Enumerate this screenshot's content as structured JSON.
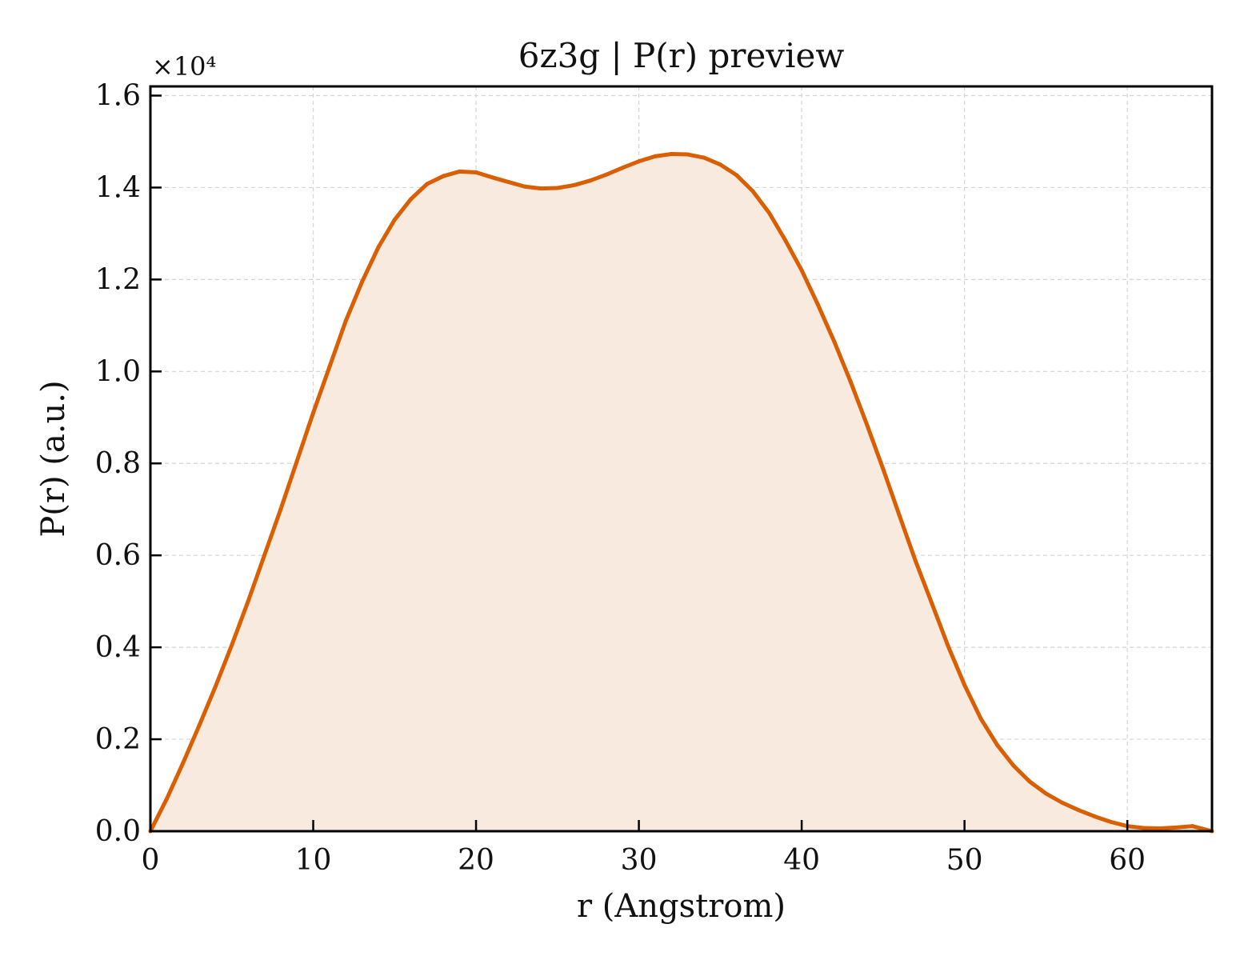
{
  "chart_data": {
    "type": "area",
    "title": "6z3g | P(r) preview",
    "xlabel": "r (Angstrom)",
    "ylabel": "P(r) (a.u.)",
    "y_multiplier_label": "×10⁴",
    "y_scale": 10000,
    "xlim": [
      0,
      65.2
    ],
    "ylim": [
      0,
      16200
    ],
    "x_ticks": [
      0,
      10,
      20,
      30,
      40,
      50,
      60
    ],
    "x_tick_labels": [
      "0",
      "10",
      "20",
      "30",
      "40",
      "50",
      "60"
    ],
    "y_ticks": [
      0,
      2000,
      4000,
      6000,
      8000,
      10000,
      12000,
      14000,
      16000
    ],
    "y_tick_labels": [
      "0.0",
      "0.2",
      "0.4",
      "0.6",
      "0.8",
      "1.0",
      "1.2",
      "1.4",
      "1.6"
    ],
    "grid": true,
    "legend": "none",
    "line_color": "#d95f02",
    "fill_color": "#f8eade",
    "series": [
      {
        "x": [
          0,
          1,
          2,
          3,
          4,
          5,
          6,
          7,
          8,
          9,
          10,
          11,
          12,
          13,
          14,
          15,
          16,
          17,
          18,
          19,
          20,
          21,
          22,
          23,
          24,
          25,
          26,
          27,
          28,
          29,
          30,
          31,
          32,
          33,
          34,
          35,
          36,
          37,
          38,
          39,
          40,
          41,
          42,
          43,
          44,
          45,
          46,
          47,
          48,
          49,
          50,
          51,
          52,
          53,
          54,
          55,
          56,
          57,
          58,
          59,
          60,
          61,
          62,
          63,
          64,
          65.2
        ],
        "values": [
          0,
          700,
          1480,
          2300,
          3150,
          4050,
          5000,
          6000,
          7000,
          8050,
          9100,
          10100,
          11100,
          11950,
          12700,
          13300,
          13750,
          14080,
          14250,
          14350,
          14330,
          14220,
          14120,
          14020,
          13980,
          13990,
          14050,
          14150,
          14280,
          14430,
          14570,
          14680,
          14730,
          14720,
          14650,
          14500,
          14270,
          13920,
          13450,
          12850,
          12200,
          11450,
          10650,
          9780,
          8850,
          7880,
          6870,
          5870,
          4950,
          4020,
          3180,
          2450,
          1880,
          1430,
          1080,
          820,
          620,
          460,
          320,
          200,
          110,
          70,
          60,
          80,
          110,
          0
        ]
      }
    ]
  }
}
